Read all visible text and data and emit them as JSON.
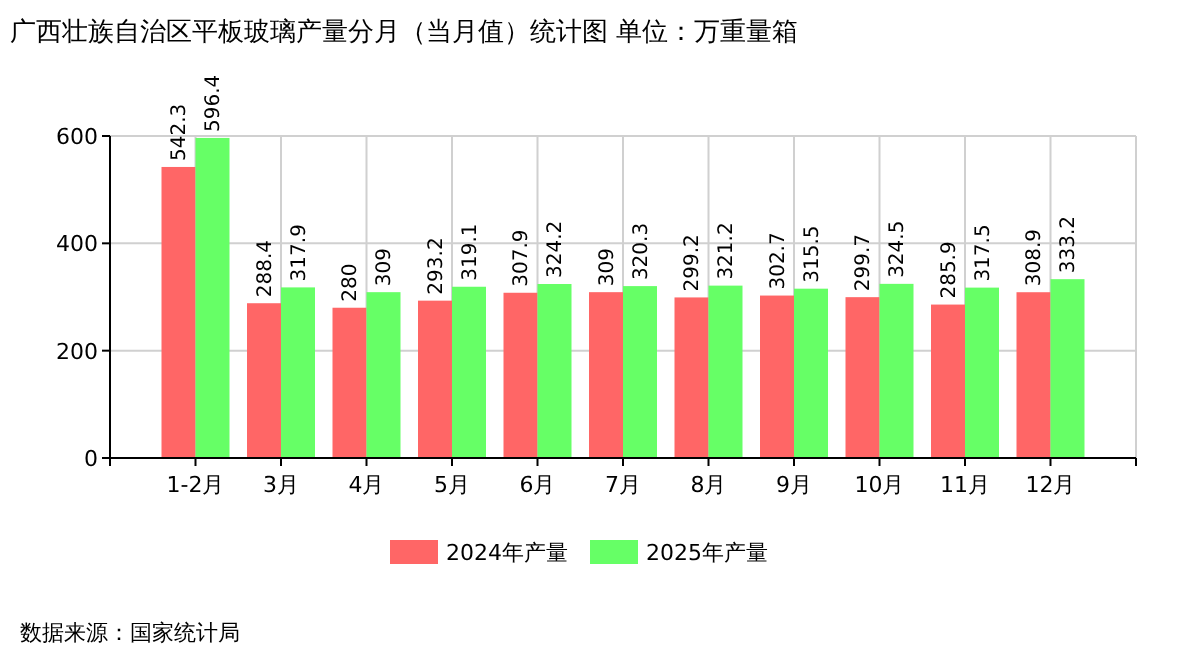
{
  "chart_data": {
    "type": "bar",
    "title": "广西壮族自治区平板玻璃产量分月（当月值）统计图 单位：万重量箱",
    "categories": [
      "1-2月",
      "3月",
      "4月",
      "5月",
      "6月",
      "7月",
      "8月",
      "9月",
      "10月",
      "11月",
      "12月"
    ],
    "series": [
      {
        "name": "2024年产量",
        "color": "#ff6666",
        "values": [
          542.3,
          288.4,
          280,
          293.2,
          307.9,
          309,
          299.2,
          302.7,
          299.7,
          285.9,
          308.9
        ]
      },
      {
        "name": "2025年产量",
        "color": "#66ff66",
        "values": [
          596.4,
          317.9,
          309,
          319.1,
          324.2,
          320.3,
          321.2,
          315.5,
          324.5,
          317.5,
          333.2
        ]
      }
    ],
    "ylim": [
      0,
      600
    ],
    "yticks": [
      0,
      200,
      400,
      600
    ],
    "grid": true,
    "legend": "bottom",
    "data_labels": true,
    "annotations": [
      "数据来源：国家统计局"
    ]
  }
}
